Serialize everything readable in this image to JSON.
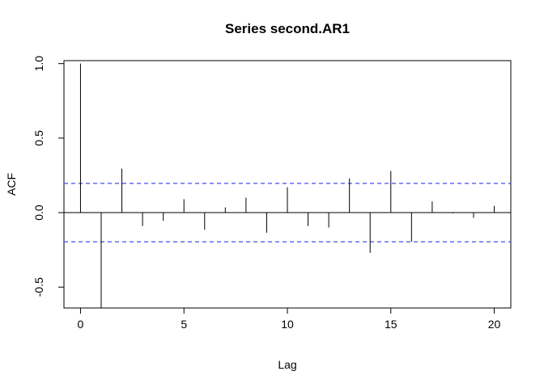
{
  "chart_data": {
    "type": "bar",
    "title": "Series  second.AR1",
    "xlabel": "Lag",
    "ylabel": "ACF",
    "xlim": [
      -0.8,
      20.8
    ],
    "ylim": [
      -0.64,
      1.02
    ],
    "x_ticks": [
      0,
      5,
      10,
      15,
      20
    ],
    "x_tick_labels": [
      "0",
      "5",
      "10",
      "15",
      "20"
    ],
    "y_ticks": [
      -0.5,
      0.0,
      0.5,
      1.0
    ],
    "y_tick_labels": [
      "-0.5",
      "0.0",
      "0.5",
      "1.0"
    ],
    "lags": [
      0,
      1,
      2,
      3,
      4,
      5,
      6,
      7,
      8,
      9,
      10,
      11,
      12,
      13,
      14,
      15,
      16,
      17,
      18,
      19,
      20
    ],
    "values": [
      1.0,
      -0.64,
      0.295,
      -0.09,
      -0.055,
      0.09,
      -0.115,
      0.035,
      0.1,
      -0.135,
      0.17,
      -0.09,
      -0.1,
      0.23,
      -0.27,
      0.28,
      -0.195,
      0.075,
      -0.005,
      -0.035,
      0.045
    ],
    "confidence_bounds": [
      0.196,
      -0.196
    ],
    "bound_color": "#4a4af0",
    "bar_color": "#000000",
    "grid": false
  }
}
